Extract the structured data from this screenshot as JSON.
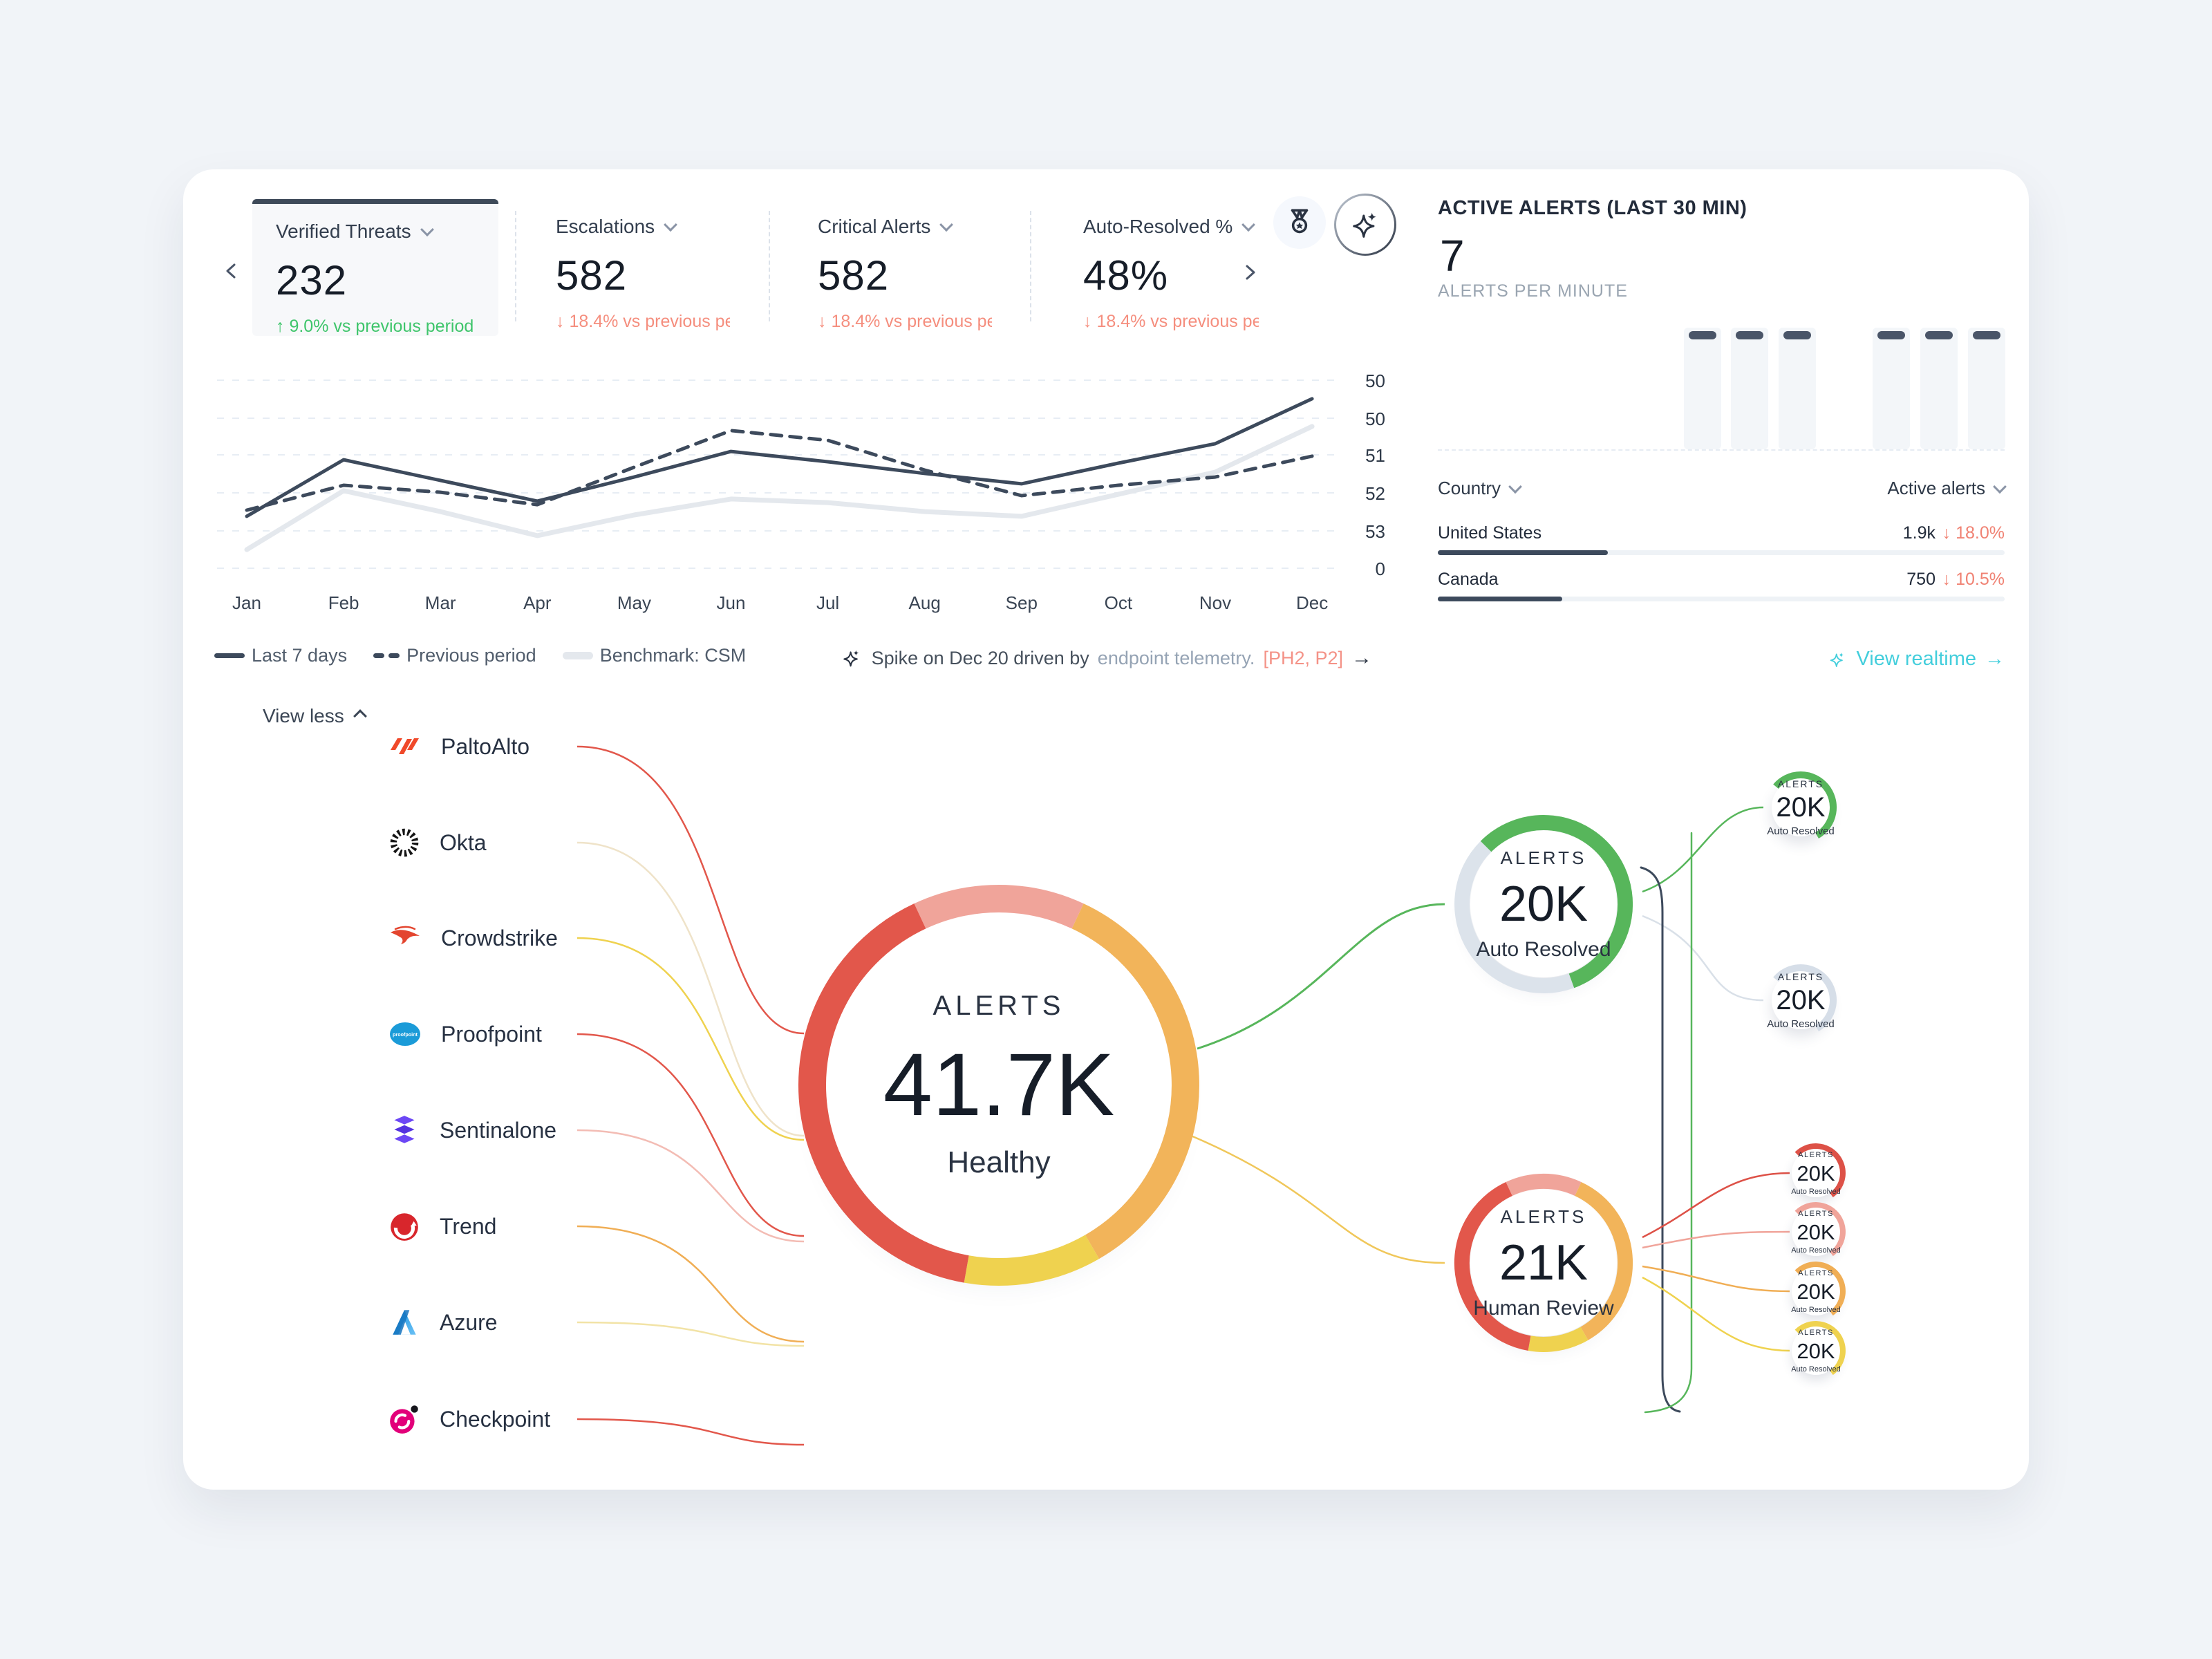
{
  "palette": {
    "red": "#E2574B",
    "salmon": "#F0A49A",
    "orange": "#F2B45A",
    "yellow": "#EFD24F",
    "green": "#57B65B",
    "navy": "#1E2A38",
    "gray_ring": "#D6DEE8",
    "teal": "#43CEDC",
    "delta_up": "#3FC56B",
    "delta_down": "#F58E7E",
    "benchmark": "#E4E8ED",
    "bar_cap": "#4A5568"
  },
  "kpis": {
    "items": [
      {
        "label": "Verified Threats",
        "value": "232",
        "arrow": "↑",
        "delta": "9.0% vs previous period",
        "direction": "up"
      },
      {
        "label": "Escalations",
        "value": "582",
        "arrow": "↓",
        "delta": "18.4% vs previous period",
        "direction": "down"
      },
      {
        "label": "Critical Alerts",
        "value": "582",
        "arrow": "↓",
        "delta": "18.4% vs previous period",
        "direction": "down"
      },
      {
        "label": "Auto-Resolved %",
        "value": "48%",
        "arrow": "↓",
        "delta": "18.4% vs previous pe",
        "direction": "down"
      }
    ]
  },
  "chart_data": {
    "type": "line",
    "title": "",
    "x": [
      "Jan",
      "Feb",
      "Mar",
      "Apr",
      "May",
      "Jun",
      "Jul",
      "Aug",
      "Sep",
      "Oct",
      "Nov",
      "Dec"
    ],
    "y_axis_ticks": [
      "50",
      "50",
      "51",
      "52",
      "53",
      "0"
    ],
    "grid": true,
    "legend_position": "bottom-left",
    "series": [
      {
        "name": "Last 7 days",
        "style": "solid",
        "color": "#3D4A5C",
        "values": [
          27.6,
          57.7,
          46.7,
          35.7,
          48.5,
          62.1,
          56.6,
          50.4,
          44.9,
          55.9,
          66.2,
          90.1
        ]
      },
      {
        "name": "Previous period",
        "style": "dashed",
        "color": "#3D4A5C",
        "values": [
          30.9,
          44.1,
          40.4,
          33.8,
          53.7,
          73.2,
          68.0,
          52.2,
          38.6,
          44.1,
          48.5,
          59.6
        ]
      },
      {
        "name": "Benchmark: CSM",
        "style": "solid-light",
        "color": "#E4E8ED",
        "values": [
          9.9,
          41.2,
          30.1,
          17.3,
          28.3,
          36.8,
          34.9,
          30.1,
          27.6,
          39.3,
          51.1,
          75.4
        ]
      }
    ],
    "annotation": {
      "text": "Spike on Dec 20 driven by",
      "text_secondary": "endpoint telemetry.",
      "tag": "[PH2, P2]",
      "arrow": "→"
    }
  },
  "alerts_panel": {
    "title": "ACTIVE ALERTS (LAST 30 MIN)",
    "value": "7",
    "subtitle": "ALERTS PER MINUTE",
    "minute_chart": {
      "type": "bar",
      "values": [
        1,
        1,
        1,
        1,
        1,
        1
      ],
      "gap_after_index": 2
    }
  },
  "country_table": {
    "header": {
      "country": "Country",
      "alerts": "Active alerts"
    },
    "rows": [
      {
        "name": "United States",
        "value": "1.9k",
        "arrow": "↓",
        "delta": "18.0%",
        "direction": "down",
        "bar_pct": 30
      },
      {
        "name": "Canada",
        "value": "750",
        "arrow": "↓",
        "delta": "10.5%",
        "direction": "down",
        "bar_pct": 22
      }
    ],
    "link": {
      "label": "View realtime",
      "arrow": "→"
    }
  },
  "flow": {
    "view_less": "View less",
    "vendors": [
      {
        "name": "PaltoAlto"
      },
      {
        "name": "Okta"
      },
      {
        "name": "Crowdstrike"
      },
      {
        "name": "Proofpoint"
      },
      {
        "name": "Sentinalone"
      },
      {
        "name": "Trend"
      },
      {
        "name": "Azure"
      },
      {
        "name": "Checkpoint"
      }
    ],
    "center": {
      "label": "ALERTS",
      "value": "41.7K",
      "status": "Healthy"
    },
    "auto_node": {
      "label": "ALERTS",
      "value": "20K",
      "sub": "Auto Resolved"
    },
    "human_node": {
      "label": "ALERTS",
      "value": "21K",
      "sub": "Human Review"
    },
    "leaves": [
      {
        "label": "ALERTS",
        "value": "20K",
        "sub": "Auto Resolved",
        "color": "green"
      },
      {
        "label": "ALERTS",
        "value": "20K",
        "sub": "Auto Resolved",
        "color": "gray"
      },
      {
        "label": "ALERTS",
        "value": "20K",
        "sub": "Auto Resolved",
        "color": "red"
      },
      {
        "label": "ALERTS",
        "value": "20K",
        "sub": "Auto Resolved",
        "color": "salmon"
      },
      {
        "label": "ALERTS",
        "value": "20K",
        "sub": "Auto Resolved",
        "color": "orange"
      },
      {
        "label": "ALERTS",
        "value": "20K",
        "sub": "Auto Resolved",
        "color": "yellow"
      }
    ]
  }
}
